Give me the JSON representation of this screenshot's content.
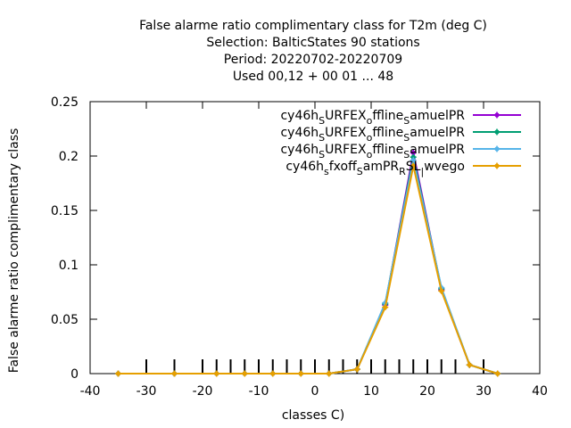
{
  "chart_data": {
    "type": "line",
    "title_lines": [
      "False alarme ratio complimentary class  for T2m (deg C)",
      "Selection: BalticStates     90 stations",
      "Period: 20220702-20220709",
      "Used  00,12  + 00 01 ... 48"
    ],
    "xlabel": "classes C)",
    "ylabel": "False alarme ratio complimentary class",
    "xlim": [
      -40,
      40
    ],
    "ylim": [
      0,
      0.25
    ],
    "xticks": [
      "-40",
      "-30",
      "-20",
      "-10",
      "0",
      "10",
      "20",
      "30",
      "40"
    ],
    "yticks": [
      "0",
      "0.05",
      "0.1",
      "0.15",
      "0.2",
      "0.25"
    ],
    "class_marks": [
      -30,
      -25,
      -20,
      -17.5,
      -15,
      -12.5,
      -10,
      -7.5,
      -5,
      -2.5,
      0,
      2.5,
      5,
      7.5,
      10,
      12.5,
      15,
      17.5,
      20,
      22.5,
      25,
      30
    ],
    "legend_position": "top-right",
    "series": [
      {
        "name_parts": [
          "cy46h",
          "S",
          "URFEX",
          "o",
          "ffline",
          "S",
          "amuelPR"
        ],
        "color": "#9400d3",
        "x": [
          -35,
          -25,
          -17.5,
          -12.5,
          -7.5,
          -2.5,
          2.5,
          7.5,
          12.5,
          17.5,
          22.5,
          27.5,
          32.5
        ],
        "y": [
          0,
          0,
          0,
          0,
          0,
          0,
          0,
          0.004,
          0.063,
          0.203,
          0.077,
          0.008,
          0
        ]
      },
      {
        "name_parts": [
          "cy46h",
          "S",
          "URFEX",
          "o",
          "ffline",
          "S",
          "amuelPR"
        ],
        "color": "#009e73",
        "x": [
          -35,
          -25,
          -17.5,
          -12.5,
          -7.5,
          -2.5,
          2.5,
          7.5,
          12.5,
          17.5,
          22.5,
          27.5,
          32.5
        ],
        "y": [
          0,
          0,
          0,
          0,
          0,
          0,
          0,
          0.004,
          0.064,
          0.199,
          0.078,
          0.008,
          0
        ]
      },
      {
        "name_parts": [
          "cy46h",
          "S",
          "URFEX",
          "o",
          "ffline",
          "S",
          "amuelPR"
        ],
        "color": "#56b4e9",
        "x": [
          -35,
          -25,
          -17.5,
          -12.5,
          -7.5,
          -2.5,
          2.5,
          7.5,
          12.5,
          17.5,
          22.5,
          27.5,
          32.5
        ],
        "y": [
          0,
          0,
          0,
          0,
          0,
          0,
          0,
          0.004,
          0.065,
          0.196,
          0.079,
          0.008,
          0
        ]
      },
      {
        "name_parts": [
          "cy46h",
          "s",
          "fxoff",
          "S",
          "amPR",
          "R",
          "SL",
          "|",
          "wvego"
        ],
        "color": "#e69f00",
        "x": [
          -35,
          -25,
          -17.5,
          -12.5,
          -7.5,
          -2.5,
          2.5,
          7.5,
          12.5,
          17.5,
          22.5,
          27.5,
          32.5
        ],
        "y": [
          0,
          0,
          0,
          0,
          0,
          0,
          0,
          0.004,
          0.061,
          0.191,
          0.076,
          0.008,
          0
        ]
      }
    ]
  }
}
